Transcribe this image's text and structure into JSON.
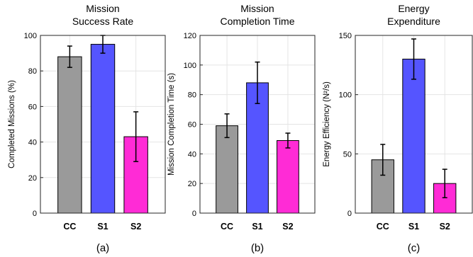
{
  "chart_data": [
    {
      "type": "bar",
      "title": [
        "Mission",
        "Success Rate"
      ],
      "ylabel": "Completed Missions (%)",
      "caption": "(a)",
      "categories": [
        "CC",
        "S1",
        "S2"
      ],
      "values": [
        88,
        95,
        43
      ],
      "errors": [
        6,
        5,
        14
      ],
      "colors": [
        "#9a9a9a",
        "#5555ff",
        "#ff2bd6"
      ],
      "ylim": [
        0,
        100
      ],
      "yticks": [
        0,
        20,
        40,
        60,
        80,
        100
      ],
      "grid": true
    },
    {
      "type": "bar",
      "title": [
        "Mission",
        "Completion Time"
      ],
      "ylabel": "Mission Completion Time (s)",
      "caption": "(b)",
      "categories": [
        "CC",
        "S1",
        "S2"
      ],
      "values": [
        59,
        88,
        49
      ],
      "errors": [
        8,
        14,
        5
      ],
      "colors": [
        "#9a9a9a",
        "#5555ff",
        "#ff2bd6"
      ],
      "ylim": [
        0,
        120
      ],
      "yticks": [
        0,
        20,
        40,
        60,
        80,
        100,
        120
      ],
      "grid": true
    },
    {
      "type": "bar",
      "title": [
        "Energy",
        "Expenditure"
      ],
      "ylabel": "Energy Efficiency (N²/s)",
      "caption": "(c)",
      "categories": [
        "CC",
        "S1",
        "S2"
      ],
      "values": [
        45,
        130,
        25
      ],
      "errors": [
        13,
        17,
        12
      ],
      "colors": [
        "#9a9a9a",
        "#5555ff",
        "#ff2bd6"
      ],
      "ylim": [
        0,
        150
      ],
      "yticks": [
        0,
        50,
        100,
        150
      ],
      "grid": true
    }
  ]
}
